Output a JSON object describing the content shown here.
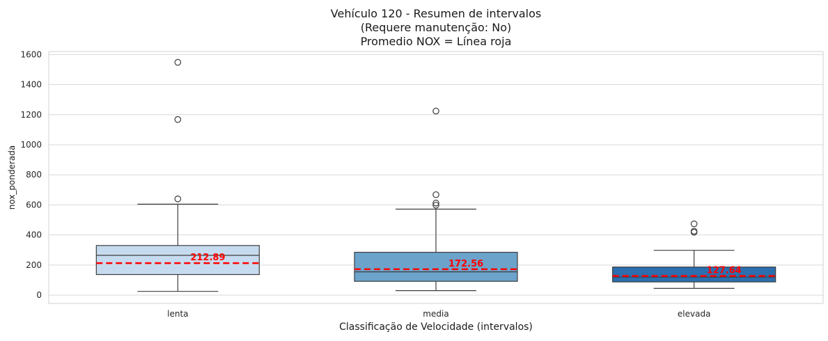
{
  "chart_data": {
    "type": "box",
    "title_lines": [
      "Vehículo 120 - Resumen de intervalos",
      "(Requere manutenção: No)",
      "Promedio NOX = Línea roja"
    ],
    "xlabel": "Classificação de Velocidade (intervalos)",
    "ylabel": "nox_ponderada",
    "ylim": [
      -55,
      1620
    ],
    "yticks": [
      0,
      200,
      400,
      600,
      800,
      1000,
      1200,
      1400,
      1600
    ],
    "grid": true,
    "categories": [
      "lenta",
      "media",
      "elevada"
    ],
    "boxes": [
      {
        "category": "lenta",
        "color": "#c6dbef",
        "whisker_low": 25,
        "q1": 137,
        "median": 265,
        "q3": 330,
        "whisker_high": 605,
        "outliers": [
          640,
          1168,
          1548
        ],
        "mean": 212.89,
        "mean_label": "212.89"
      },
      {
        "category": "media",
        "color": "#6ba3cb",
        "whisker_low": 30,
        "q1": 92,
        "median": 155,
        "q3": 285,
        "whisker_high": 572,
        "outliers": [
          598,
          612,
          668,
          1224
        ],
        "mean": 172.56,
        "mean_label": "172.56"
      },
      {
        "category": "elevada",
        "color": "#2b6fae",
        "whisker_low": 45,
        "q1": 88,
        "median": 120,
        "q3": 187,
        "whisker_high": 298,
        "outliers": [
          418,
          425,
          474
        ],
        "mean": 127.64,
        "mean_label": "127.64"
      }
    ],
    "mean_line_color": "#ff0000",
    "box_edge_color": "#3d3d3d"
  }
}
